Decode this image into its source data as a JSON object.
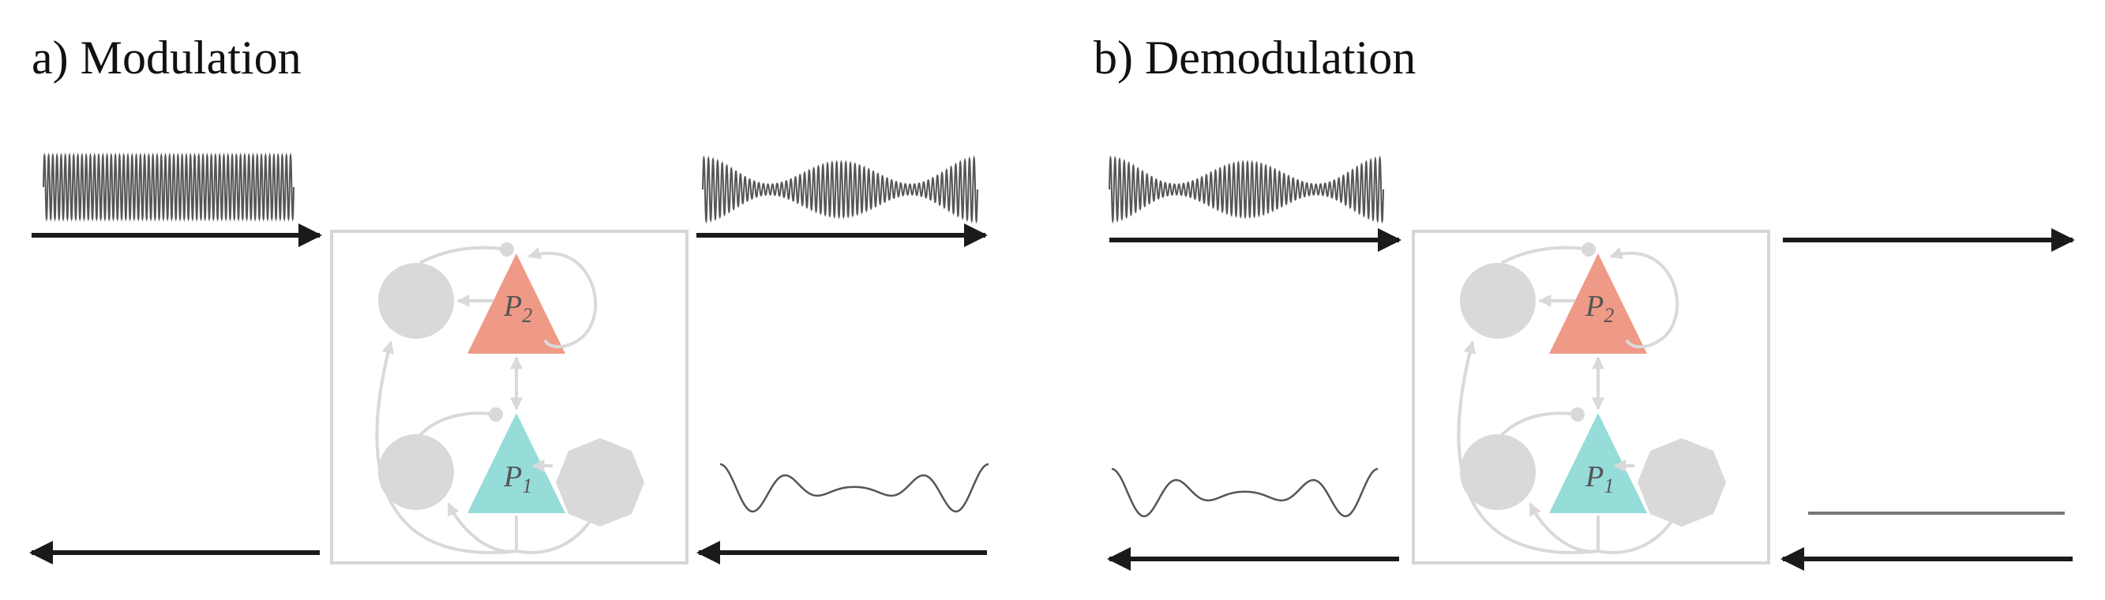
{
  "panels": [
    {
      "title": "a) Modulation"
    },
    {
      "title": "b) Demodulation"
    }
  ],
  "populations": {
    "p1": {
      "letter": "P",
      "sub": "1"
    },
    "p2": {
      "letter": "P",
      "sub": "2"
    }
  },
  "colors": {
    "p1_fill": "#96dcd9",
    "p2_fill": "#ef9a87",
    "interneuron_fill": "#d9d9d9",
    "connection": "#d9d9d9",
    "frame": "#d6d6d6",
    "io_arrow": "#1a1a1a",
    "signal": "#555555"
  }
}
